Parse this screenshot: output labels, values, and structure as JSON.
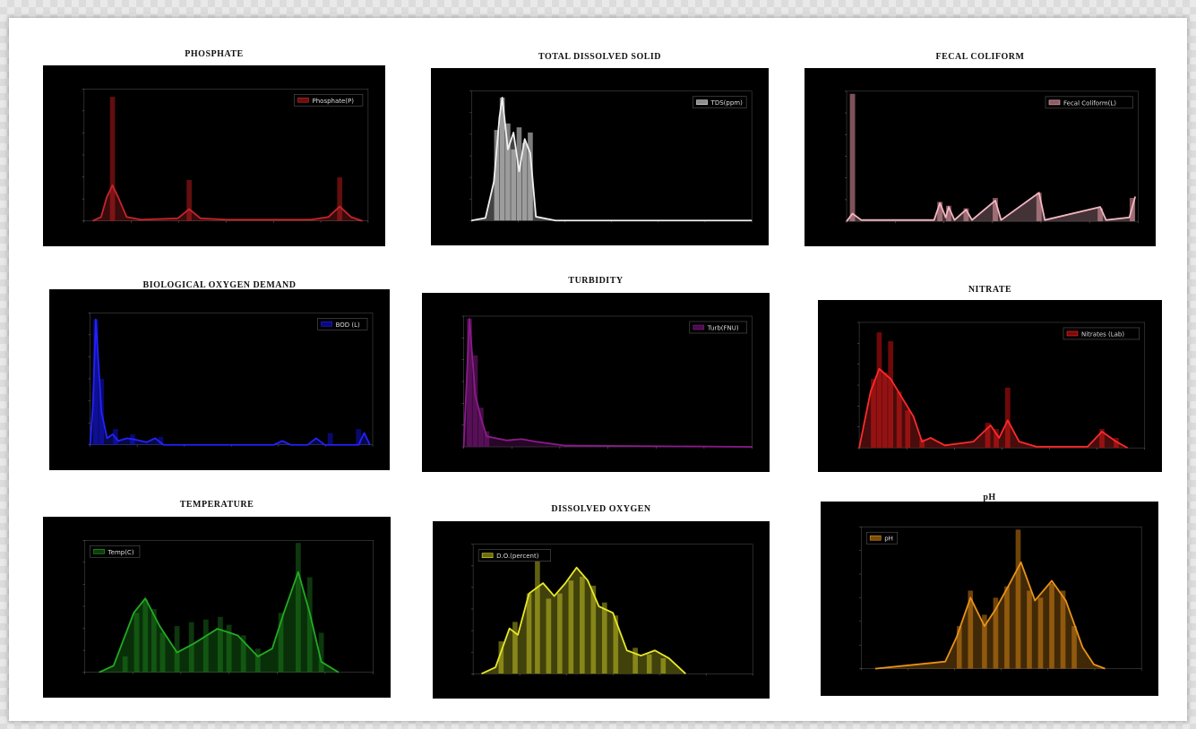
{
  "charts": [
    {
      "id": "phosphate",
      "title": "PHOSPHATE",
      "legend": "Phosphate(P)",
      "legend_loc": "top-right",
      "color": "#c8242a",
      "fill": "#6b0f10",
      "xlim": [
        0,
        1
      ],
      "ylim": [
        0,
        1
      ],
      "bars": [
        [
          0.1,
          0.94
        ],
        [
          0.37,
          0.31
        ],
        [
          0.9,
          0.33
        ]
      ],
      "kde": [
        [
          0.03,
          0.0
        ],
        [
          0.06,
          0.03
        ],
        [
          0.08,
          0.18
        ],
        [
          0.1,
          0.27
        ],
        [
          0.12,
          0.18
        ],
        [
          0.15,
          0.03
        ],
        [
          0.2,
          0.01
        ],
        [
          0.33,
          0.02
        ],
        [
          0.37,
          0.09
        ],
        [
          0.41,
          0.02
        ],
        [
          0.5,
          0.01
        ],
        [
          0.8,
          0.01
        ],
        [
          0.86,
          0.03
        ],
        [
          0.9,
          0.11
        ],
        [
          0.94,
          0.03
        ],
        [
          0.98,
          0.0
        ]
      ]
    },
    {
      "id": "tds",
      "title": "TOTAL DISSOLVED SOLID",
      "legend": "TDS(ppm)",
      "legend_loc": "top-right",
      "color": "#f0f0f0",
      "fill": "#8a8a8a",
      "xlim": [
        0,
        1
      ],
      "ylim": [
        0,
        1
      ],
      "bars": [
        [
          0.09,
          0.7
        ],
        [
          0.11,
          0.95
        ],
        [
          0.13,
          0.75
        ],
        [
          0.15,
          0.55
        ],
        [
          0.17,
          0.72
        ],
        [
          0.19,
          0.6
        ],
        [
          0.21,
          0.68
        ]
      ],
      "kde": [
        [
          0.0,
          0.0
        ],
        [
          0.05,
          0.02
        ],
        [
          0.08,
          0.3
        ],
        [
          0.1,
          0.8
        ],
        [
          0.11,
          0.95
        ],
        [
          0.13,
          0.55
        ],
        [
          0.15,
          0.68
        ],
        [
          0.17,
          0.38
        ],
        [
          0.19,
          0.63
        ],
        [
          0.21,
          0.52
        ],
        [
          0.23,
          0.03
        ],
        [
          0.3,
          0.0
        ],
        [
          1.0,
          0.0
        ]
      ]
    },
    {
      "id": "fecal",
      "title": "FECAL COLIFORM",
      "legend": "Fecal Coliform(L)",
      "legend_loc": "top-right",
      "color": "#f2b7c2",
      "fill": "#8c5a62",
      "xlim": [
        0,
        1
      ],
      "ylim": [
        0,
        1
      ],
      "bars": [
        [
          0.02,
          0.98
        ],
        [
          0.32,
          0.15
        ],
        [
          0.35,
          0.12
        ],
        [
          0.41,
          0.1
        ],
        [
          0.51,
          0.18
        ],
        [
          0.66,
          0.22
        ],
        [
          0.87,
          0.1
        ],
        [
          0.98,
          0.18
        ]
      ],
      "kde": [
        [
          0.0,
          0.0
        ],
        [
          0.02,
          0.06
        ],
        [
          0.05,
          0.01
        ],
        [
          0.3,
          0.01
        ],
        [
          0.32,
          0.14
        ],
        [
          0.34,
          0.03
        ],
        [
          0.35,
          0.11
        ],
        [
          0.37,
          0.01
        ],
        [
          0.41,
          0.09
        ],
        [
          0.43,
          0.01
        ],
        [
          0.51,
          0.16
        ],
        [
          0.53,
          0.01
        ],
        [
          0.66,
          0.22
        ],
        [
          0.68,
          0.01
        ],
        [
          0.87,
          0.11
        ],
        [
          0.89,
          0.01
        ],
        [
          0.97,
          0.03
        ],
        [
          0.99,
          0.19
        ]
      ]
    },
    {
      "id": "bod",
      "title": "BIOLOGICAL OXYGEN DEMAND",
      "legend": "BOD (L)",
      "legend_loc": "top-right",
      "color": "#2222ff",
      "fill": "#0a0a77",
      "xlim": [
        0,
        1
      ],
      "ylim": [
        0,
        1
      ],
      "bars": [
        [
          0.02,
          0.95
        ],
        [
          0.04,
          0.5
        ],
        [
          0.09,
          0.12
        ],
        [
          0.15,
          0.08
        ],
        [
          0.25,
          0.06
        ],
        [
          0.85,
          0.09
        ],
        [
          0.95,
          0.12
        ]
      ],
      "kde": [
        [
          0.0,
          0.0
        ],
        [
          0.01,
          0.3
        ],
        [
          0.02,
          0.95
        ],
        [
          0.03,
          0.6
        ],
        [
          0.04,
          0.25
        ],
        [
          0.06,
          0.05
        ],
        [
          0.08,
          0.08
        ],
        [
          0.1,
          0.03
        ],
        [
          0.13,
          0.05
        ],
        [
          0.16,
          0.04
        ],
        [
          0.2,
          0.02
        ],
        [
          0.23,
          0.05
        ],
        [
          0.26,
          0.0
        ],
        [
          0.65,
          0.0
        ],
        [
          0.68,
          0.03
        ],
        [
          0.71,
          0.0
        ],
        [
          0.77,
          0.0
        ],
        [
          0.8,
          0.05
        ],
        [
          0.83,
          0.0
        ],
        [
          0.95,
          0.0
        ],
        [
          0.97,
          0.09
        ],
        [
          0.99,
          0.0
        ]
      ]
    },
    {
      "id": "turbidity",
      "title": "TURBIDITY",
      "legend": "Turb(FNU)",
      "legend_loc": "top-right",
      "color": "#8b1a8b",
      "fill": "#4a0e4a",
      "xlim": [
        0,
        1
      ],
      "ylim": [
        0,
        1
      ],
      "bars": [
        [
          0.02,
          0.98
        ],
        [
          0.04,
          0.7
        ],
        [
          0.06,
          0.3
        ],
        [
          0.08,
          0.12
        ]
      ],
      "kde": [
        [
          0.0,
          0.0
        ],
        [
          0.02,
          0.98
        ],
        [
          0.04,
          0.4
        ],
        [
          0.06,
          0.22
        ],
        [
          0.08,
          0.08
        ],
        [
          0.15,
          0.05
        ],
        [
          0.2,
          0.06
        ],
        [
          0.25,
          0.04
        ],
        [
          0.35,
          0.01
        ],
        [
          1.0,
          0.0
        ]
      ]
    },
    {
      "id": "nitrate",
      "title": "NITRATE",
      "legend": "Nitrates (Lab)",
      "legend_loc": "top-right",
      "color": "#ff2a2a",
      "fill": "#7a0a0a",
      "xlim": [
        0,
        1
      ],
      "ylim": [
        0,
        1
      ],
      "bars": [
        [
          0.05,
          0.55
        ],
        [
          0.07,
          0.92
        ],
        [
          0.09,
          0.6
        ],
        [
          0.11,
          0.85
        ],
        [
          0.14,
          0.45
        ],
        [
          0.17,
          0.3
        ],
        [
          0.22,
          0.07
        ],
        [
          0.45,
          0.2
        ],
        [
          0.48,
          0.15
        ],
        [
          0.52,
          0.48
        ],
        [
          0.85,
          0.15
        ],
        [
          0.9,
          0.08
        ]
      ],
      "kde": [
        [
          0.0,
          0.0
        ],
        [
          0.04,
          0.45
        ],
        [
          0.07,
          0.63
        ],
        [
          0.11,
          0.55
        ],
        [
          0.15,
          0.4
        ],
        [
          0.19,
          0.25
        ],
        [
          0.22,
          0.05
        ],
        [
          0.25,
          0.08
        ],
        [
          0.3,
          0.02
        ],
        [
          0.4,
          0.05
        ],
        [
          0.46,
          0.18
        ],
        [
          0.49,
          0.08
        ],
        [
          0.52,
          0.22
        ],
        [
          0.56,
          0.05
        ],
        [
          0.62,
          0.01
        ],
        [
          0.8,
          0.01
        ],
        [
          0.85,
          0.13
        ],
        [
          0.9,
          0.05
        ],
        [
          0.94,
          0.0
        ]
      ]
    },
    {
      "id": "temperature",
      "title": "TEMPERATURE",
      "legend": "Temp(C)",
      "legend_loc": "top-left",
      "color": "#22aa22",
      "fill": "#0e3d0e",
      "xlim": [
        0,
        1
      ],
      "ylim": [
        0,
        1
      ],
      "bars": [
        [
          0.14,
          0.12
        ],
        [
          0.18,
          0.45
        ],
        [
          0.21,
          0.55
        ],
        [
          0.24,
          0.48
        ],
        [
          0.27,
          0.3
        ],
        [
          0.32,
          0.35
        ],
        [
          0.37,
          0.38
        ],
        [
          0.42,
          0.4
        ],
        [
          0.47,
          0.42
        ],
        [
          0.5,
          0.36
        ],
        [
          0.55,
          0.28
        ],
        [
          0.6,
          0.18
        ],
        [
          0.68,
          0.45
        ],
        [
          0.74,
          0.98
        ],
        [
          0.78,
          0.72
        ],
        [
          0.82,
          0.3
        ]
      ],
      "kde": [
        [
          0.05,
          0.0
        ],
        [
          0.1,
          0.05
        ],
        [
          0.17,
          0.45
        ],
        [
          0.21,
          0.56
        ],
        [
          0.26,
          0.35
        ],
        [
          0.32,
          0.15
        ],
        [
          0.38,
          0.22
        ],
        [
          0.46,
          0.33
        ],
        [
          0.53,
          0.28
        ],
        [
          0.6,
          0.12
        ],
        [
          0.65,
          0.18
        ],
        [
          0.69,
          0.45
        ],
        [
          0.74,
          0.76
        ],
        [
          0.78,
          0.45
        ],
        [
          0.82,
          0.08
        ],
        [
          0.88,
          0.0
        ]
      ]
    },
    {
      "id": "do",
      "title": "DISSOLVED OXYGEN",
      "legend": "D.O.(percent)",
      "legend_loc": "top-left",
      "color": "#e8e82a",
      "fill": "#6a6a14",
      "xlim": [
        0,
        1
      ],
      "ylim": [
        0,
        1
      ],
      "bars": [
        [
          0.1,
          0.25
        ],
        [
          0.15,
          0.4
        ],
        [
          0.2,
          0.62
        ],
        [
          0.23,
          0.92
        ],
        [
          0.27,
          0.58
        ],
        [
          0.31,
          0.62
        ],
        [
          0.35,
          0.72
        ],
        [
          0.39,
          0.75
        ],
        [
          0.43,
          0.68
        ],
        [
          0.47,
          0.55
        ],
        [
          0.51,
          0.45
        ],
        [
          0.58,
          0.2
        ],
        [
          0.63,
          0.15
        ],
        [
          0.68,
          0.12
        ]
      ],
      "kde": [
        [
          0.03,
          0.0
        ],
        [
          0.08,
          0.05
        ],
        [
          0.13,
          0.35
        ],
        [
          0.16,
          0.3
        ],
        [
          0.2,
          0.62
        ],
        [
          0.25,
          0.7
        ],
        [
          0.29,
          0.6
        ],
        [
          0.33,
          0.7
        ],
        [
          0.37,
          0.82
        ],
        [
          0.41,
          0.72
        ],
        [
          0.45,
          0.52
        ],
        [
          0.5,
          0.47
        ],
        [
          0.55,
          0.18
        ],
        [
          0.6,
          0.14
        ],
        [
          0.65,
          0.18
        ],
        [
          0.7,
          0.12
        ],
        [
          0.76,
          0.0
        ]
      ]
    },
    {
      "id": "ph",
      "title": "pH",
      "legend": "pH",
      "legend_loc": "top-left",
      "color": "#e8921a",
      "fill": "#7a4a0a",
      "xlim": [
        0,
        1
      ],
      "ylim": [
        0,
        1
      ],
      "bars": [
        [
          0.35,
          0.3
        ],
        [
          0.39,
          0.55
        ],
        [
          0.44,
          0.38
        ],
        [
          0.48,
          0.5
        ],
        [
          0.52,
          0.58
        ],
        [
          0.56,
          0.98
        ],
        [
          0.6,
          0.55
        ],
        [
          0.64,
          0.5
        ],
        [
          0.68,
          0.6
        ],
        [
          0.72,
          0.55
        ],
        [
          0.76,
          0.3
        ]
      ],
      "kde": [
        [
          0.05,
          0.0
        ],
        [
          0.3,
          0.05
        ],
        [
          0.34,
          0.22
        ],
        [
          0.39,
          0.5
        ],
        [
          0.44,
          0.3
        ],
        [
          0.48,
          0.42
        ],
        [
          0.53,
          0.6
        ],
        [
          0.57,
          0.75
        ],
        [
          0.62,
          0.48
        ],
        [
          0.68,
          0.62
        ],
        [
          0.73,
          0.48
        ],
        [
          0.79,
          0.15
        ],
        [
          0.83,
          0.03
        ],
        [
          0.87,
          0.0
        ]
      ]
    }
  ]
}
